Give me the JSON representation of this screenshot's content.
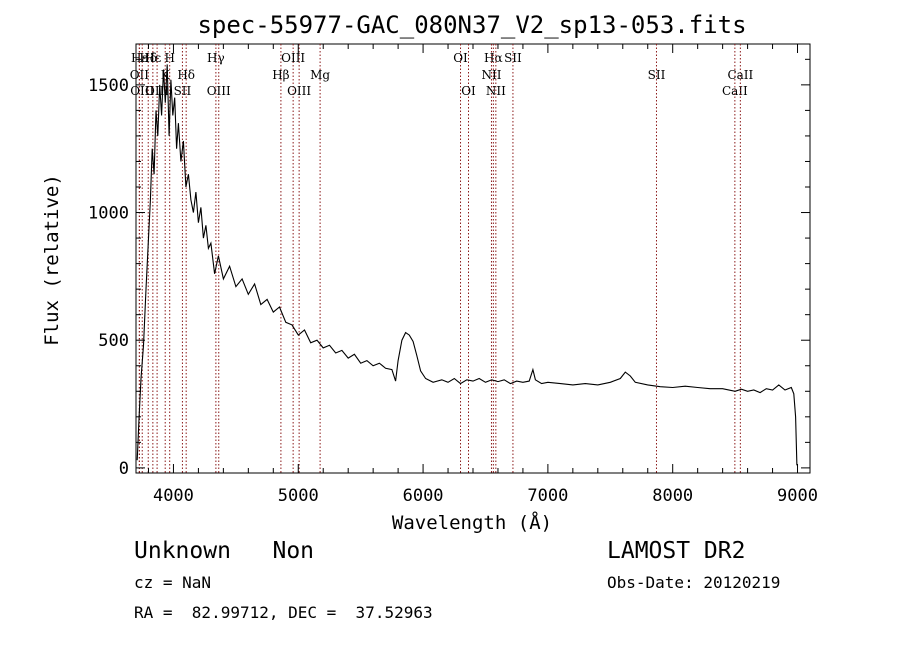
{
  "chart_data": {
    "type": "line",
    "title": "spec-55977-GAC_080N37_V2_sp13-053.fits",
    "xlabel": "Wavelength (Å)",
    "ylabel": "Flux (relative)",
    "xlim": [
      3700,
      9100
    ],
    "ylim": [
      -20,
      1660
    ],
    "xticks": [
      4000,
      5000,
      6000,
      7000,
      8000,
      9000
    ],
    "yticks": [
      0,
      500,
      1000,
      1500
    ],
    "grid": false,
    "series": [
      {
        "points": [
          [
            3710,
            30
          ],
          [
            3725,
            200
          ],
          [
            3740,
            350
          ],
          [
            3760,
            480
          ],
          [
            3780,
            700
          ],
          [
            3800,
            900
          ],
          [
            3815,
            1050
          ],
          [
            3830,
            1250
          ],
          [
            3845,
            1150
          ],
          [
            3860,
            1400
          ],
          [
            3875,
            1300
          ],
          [
            3890,
            1500
          ],
          [
            3905,
            1380
          ],
          [
            3920,
            1560
          ],
          [
            3935,
            1430
          ],
          [
            3950,
            1580
          ],
          [
            3965,
            1300
          ],
          [
            3980,
            1520
          ],
          [
            3995,
            1380
          ],
          [
            4010,
            1450
          ],
          [
            4025,
            1250
          ],
          [
            4040,
            1350
          ],
          [
            4060,
            1200
          ],
          [
            4080,
            1280
          ],
          [
            4100,
            1100
          ],
          [
            4120,
            1150
          ],
          [
            4140,
            1050
          ],
          [
            4160,
            1000
          ],
          [
            4180,
            1080
          ],
          [
            4200,
            960
          ],
          [
            4220,
            1020
          ],
          [
            4240,
            900
          ],
          [
            4260,
            950
          ],
          [
            4280,
            860
          ],
          [
            4300,
            880
          ],
          [
            4330,
            760
          ],
          [
            4360,
            830
          ],
          [
            4400,
            740
          ],
          [
            4450,
            790
          ],
          [
            4500,
            710
          ],
          [
            4550,
            740
          ],
          [
            4600,
            680
          ],
          [
            4650,
            720
          ],
          [
            4700,
            640
          ],
          [
            4750,
            660
          ],
          [
            4800,
            610
          ],
          [
            4850,
            630
          ],
          [
            4900,
            570
          ],
          [
            4950,
            560
          ],
          [
            5000,
            520
          ],
          [
            5050,
            540
          ],
          [
            5100,
            490
          ],
          [
            5150,
            500
          ],
          [
            5200,
            470
          ],
          [
            5250,
            480
          ],
          [
            5300,
            450
          ],
          [
            5350,
            460
          ],
          [
            5400,
            430
          ],
          [
            5450,
            445
          ],
          [
            5500,
            410
          ],
          [
            5550,
            420
          ],
          [
            5600,
            400
          ],
          [
            5650,
            410
          ],
          [
            5700,
            390
          ],
          [
            5750,
            385
          ],
          [
            5780,
            340
          ],
          [
            5800,
            420
          ],
          [
            5830,
            500
          ],
          [
            5860,
            530
          ],
          [
            5890,
            520
          ],
          [
            5920,
            495
          ],
          [
            5950,
            440
          ],
          [
            5980,
            380
          ],
          [
            6020,
            350
          ],
          [
            6080,
            335
          ],
          [
            6150,
            345
          ],
          [
            6200,
            335
          ],
          [
            6250,
            350
          ],
          [
            6300,
            330
          ],
          [
            6350,
            345
          ],
          [
            6400,
            340
          ],
          [
            6450,
            350
          ],
          [
            6500,
            335
          ],
          [
            6550,
            345
          ],
          [
            6600,
            338
          ],
          [
            6650,
            345
          ],
          [
            6700,
            330
          ],
          [
            6750,
            340
          ],
          [
            6800,
            335
          ],
          [
            6850,
            340
          ],
          [
            6880,
            385
          ],
          [
            6900,
            345
          ],
          [
            6950,
            330
          ],
          [
            7000,
            335
          ],
          [
            7100,
            330
          ],
          [
            7200,
            325
          ],
          [
            7300,
            330
          ],
          [
            7400,
            325
          ],
          [
            7500,
            335
          ],
          [
            7580,
            350
          ],
          [
            7620,
            375
          ],
          [
            7660,
            360
          ],
          [
            7700,
            335
          ],
          [
            7800,
            325
          ],
          [
            7900,
            318
          ],
          [
            8000,
            315
          ],
          [
            8100,
            320
          ],
          [
            8200,
            315
          ],
          [
            8300,
            310
          ],
          [
            8400,
            310
          ],
          [
            8500,
            300
          ],
          [
            8550,
            308
          ],
          [
            8600,
            300
          ],
          [
            8650,
            305
          ],
          [
            8700,
            295
          ],
          [
            8750,
            310
          ],
          [
            8800,
            305
          ],
          [
            8850,
            325
          ],
          [
            8900,
            305
          ],
          [
            8950,
            315
          ],
          [
            8970,
            290
          ],
          [
            8985,
            200
          ],
          [
            8995,
            10
          ]
        ]
      }
    ],
    "lines": [
      {
        "label": "Hε",
        "x": 3727,
        "row": 1
      },
      {
        "label": "OII",
        "x": 3727,
        "row": 2
      },
      {
        "label": "OIII",
        "x": 3750,
        "row": 3
      },
      {
        "label": "Hδ",
        "x": 3798,
        "row": 1
      },
      {
        "label": "Hε",
        "x": 3835,
        "row": 1
      },
      {
        "label": "OIII",
        "x": 3869,
        "row": 3
      },
      {
        "label": "H",
        "x": 3970,
        "row": 1
      },
      {
        "label": "K",
        "x": 3934,
        "row": 2
      },
      {
        "label": "Hδ",
        "x": 4102,
        "row": 2
      },
      {
        "label": "SII",
        "x": 4072,
        "row": 3
      },
      {
        "label": "Hγ",
        "x": 4340,
        "row": 1
      },
      {
        "label": "OIII",
        "x": 4363,
        "row": 3
      },
      {
        "label": "Hβ",
        "x": 4861,
        "row": 2
      },
      {
        "label": "OIII",
        "x": 4959,
        "row": 1
      },
      {
        "label": "OIII",
        "x": 5007,
        "row": 3
      },
      {
        "label": "Mg",
        "x": 5175,
        "row": 2
      },
      {
        "label": "OI",
        "x": 6300,
        "row": 1
      },
      {
        "label": "OI",
        "x": 6364,
        "row": 3
      },
      {
        "label": "Hα",
        "x": 6563,
        "row": 1
      },
      {
        "label": "NII",
        "x": 6548,
        "row": 2
      },
      {
        "label": "NII",
        "x": 6583,
        "row": 3
      },
      {
        "label": "SII",
        "x": 6720,
        "row": 1
      },
      {
        "label": "SII",
        "x": 7870,
        "row": 2
      },
      {
        "label": "CaII",
        "x": 8498,
        "row": 3
      },
      {
        "label": "CaII",
        "x": 8542,
        "row": 2
      }
    ]
  },
  "info": {
    "class_text": "Unknown   Non",
    "cz_text": "cz = NaN",
    "radec_text": "RA =  82.99712, DEC =  37.52963",
    "survey_text": "LAMOST DR2",
    "obsdate_text": "Obs-Date: 20120219"
  }
}
